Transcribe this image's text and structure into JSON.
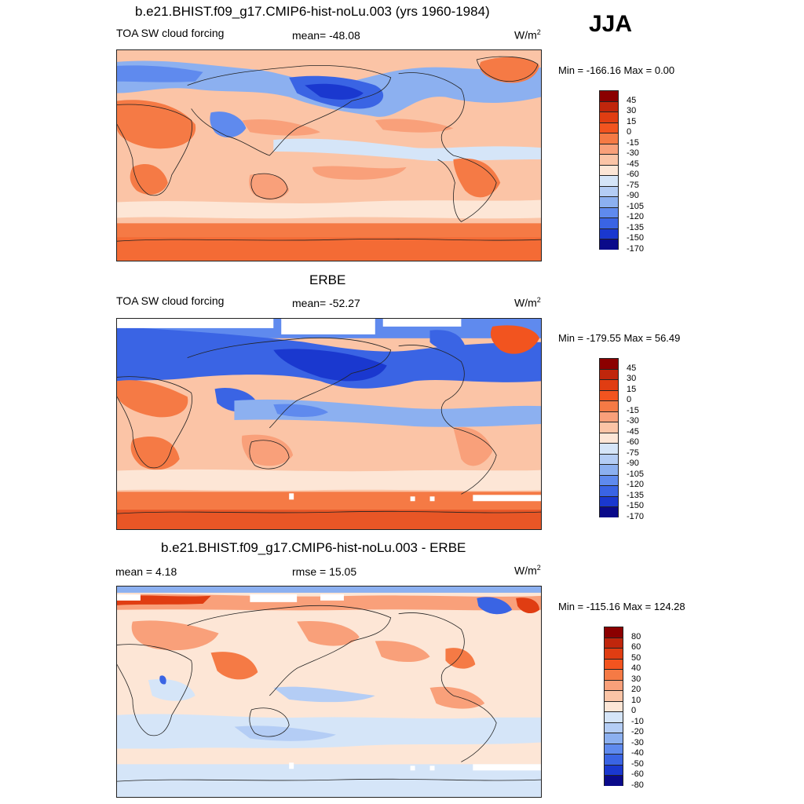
{
  "season": "JJA",
  "panels": [
    {
      "title": "b.e21.BHIST.f09_g17.CMIP6-hist-noLu.003 (yrs 1960-1984)",
      "left_label": "TOA SW cloud forcing",
      "center_label": "mean= -48.08",
      "unit": "W/m",
      "unit_sup": "2",
      "minmax": "Min = -166.16 Max =    0.00",
      "colorbar": [
        "45",
        "30",
        "15",
        "0",
        "-15",
        "-30",
        "-45",
        "-60",
        "-75",
        "-90",
        "-105",
        "-120",
        "-135",
        "-150",
        "-170"
      ]
    },
    {
      "title": "ERBE",
      "left_label": "TOA SW cloud forcing",
      "center_label": "mean= -52.27",
      "unit": "W/m",
      "unit_sup": "2",
      "minmax": "Min = -179.55 Max =  56.49",
      "colorbar": [
        "45",
        "30",
        "15",
        "0",
        "-15",
        "-30",
        "-45",
        "-60",
        "-75",
        "-90",
        "-105",
        "-120",
        "-135",
        "-150",
        "-170"
      ]
    },
    {
      "title": "b.e21.BHIST.f09_g17.CMIP6-hist-noLu.003 - ERBE",
      "left_label": "mean =   4.18",
      "center_label": "rmse =  15.05",
      "unit": "W/m",
      "unit_sup": "2",
      "minmax": "Min = -115.16 Max = 124.28",
      "colorbar": [
        "80",
        "60",
        "50",
        "40",
        "30",
        "20",
        "10",
        "0",
        "-10",
        "-20",
        "-30",
        "-40",
        "-50",
        "-60",
        "-80"
      ]
    }
  ],
  "colors": {
    "abs_scale": [
      "#8b0000",
      "#c0260c",
      "#e03d12",
      "#f2541f",
      "#f57a45",
      "#f9a07a",
      "#fbc4a6",
      "#fde6d6",
      "#d5e5f8",
      "#b4cdf5",
      "#8cb0f0",
      "#5f8aee",
      "#3a64e4",
      "#1a38cf",
      "#0a0a8a"
    ],
    "diff_scale": [
      "#8b0000",
      "#c0260c",
      "#e03d12",
      "#f2541f",
      "#f57a45",
      "#f9a07a",
      "#fbc4a6",
      "#fde6d6",
      "#d5e5f8",
      "#b4cdf5",
      "#8cb0f0",
      "#5f8aee",
      "#3a64e4",
      "#1a38cf",
      "#0a0a8a"
    ]
  }
}
